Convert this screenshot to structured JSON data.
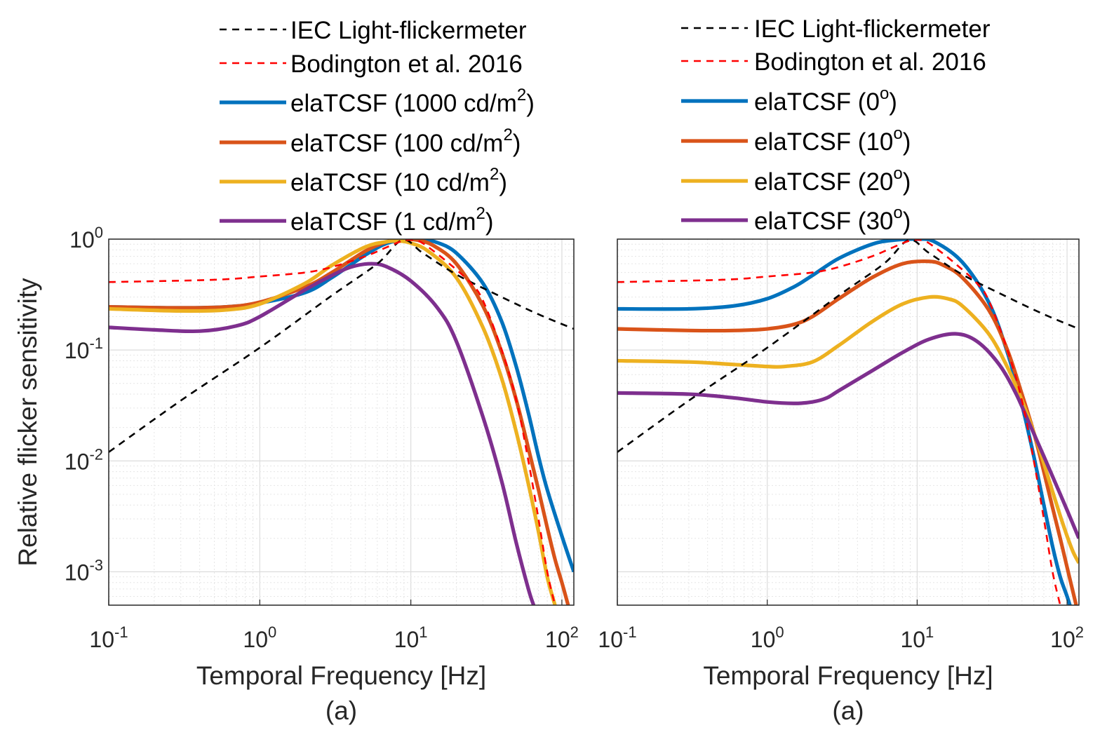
{
  "chart_data": [
    {
      "type": "line",
      "panel_label": "(a)",
      "xlabel": "Temporal Frequency [Hz]",
      "ylabel": "Relative flicker sensitivity",
      "xscale": "log",
      "yscale": "log",
      "xlim": [
        0.1,
        120
      ],
      "ylim": [
        0.0005,
        1
      ],
      "grid": true,
      "legend_position": "above-plot",
      "xticks": [
        {
          "base": "10",
          "exp": "-1"
        },
        {
          "base": "10",
          "exp": "0"
        },
        {
          "base": "10",
          "exp": "1"
        },
        {
          "base": "10",
          "exp": "2"
        }
      ],
      "yticks": [
        {
          "base": "10",
          "exp": "0"
        },
        {
          "base": "10",
          "exp": "-1"
        },
        {
          "base": "10",
          "exp": "-2"
        },
        {
          "base": "10",
          "exp": "-3"
        }
      ],
      "series": [
        {
          "name": "IEC Light-flickermeter",
          "legend_main": "IEC Light-flickermeter",
          "legend_sup": "",
          "legend_tail": "",
          "color": "#000000",
          "dash": true,
          "x": [
            0.1,
            0.3,
            1,
            3,
            6,
            8.8,
            12,
            20,
            40,
            70,
            120
          ],
          "y": [
            0.012,
            0.035,
            0.105,
            0.31,
            0.6,
            0.98,
            0.75,
            0.48,
            0.3,
            0.21,
            0.155
          ]
        },
        {
          "name": "Bodington et al. 2016",
          "legend_main": "Bodington et al. 2016",
          "legend_sup": "",
          "legend_tail": "",
          "color": "#ff0000",
          "dash": true,
          "x": [
            0.1,
            0.5,
            1,
            2,
            3,
            5,
            7,
            9,
            11,
            13,
            18,
            25,
            30,
            40,
            50,
            60,
            70,
            80,
            90
          ],
          "y": [
            0.41,
            0.43,
            0.46,
            0.5,
            0.56,
            0.7,
            0.85,
            0.97,
            0.97,
            0.85,
            0.6,
            0.4,
            0.28,
            0.1,
            0.035,
            0.01,
            0.003,
            0.001,
            0.0005
          ]
        },
        {
          "name": "elaTCSF (1000 cd/m2)",
          "legend_main": "elaTCSF (1000 cd/m",
          "legend_sup": "2",
          "legend_tail": ")",
          "color": "#0072bd",
          "dash": false,
          "x": [
            0.1,
            0.3,
            0.6,
            1,
            2,
            3,
            5,
            7,
            10,
            12,
            15,
            20,
            30,
            40,
            50,
            60,
            70,
            80,
            100,
            120
          ],
          "y": [
            0.245,
            0.24,
            0.245,
            0.265,
            0.33,
            0.45,
            0.72,
            0.92,
            1.0,
            0.99,
            0.93,
            0.75,
            0.4,
            0.18,
            0.07,
            0.027,
            0.011,
            0.0055,
            0.0021,
            0.001
          ]
        },
        {
          "name": "elaTCSF (100 cd/m2)",
          "legend_main": "elaTCSF (100 cd/m",
          "legend_sup": "2",
          "legend_tail": ")",
          "color": "#d95319",
          "dash": false,
          "x": [
            0.1,
            0.3,
            0.6,
            1,
            2,
            3,
            5,
            7,
            9,
            11,
            14,
            20,
            30,
            40,
            50,
            60,
            70,
            80,
            90,
            100,
            110
          ],
          "y": [
            0.245,
            0.24,
            0.245,
            0.27,
            0.37,
            0.5,
            0.78,
            0.95,
            1.0,
            0.98,
            0.88,
            0.6,
            0.25,
            0.095,
            0.035,
            0.013,
            0.0055,
            0.0025,
            0.0013,
            0.0008,
            0.0005
          ]
        },
        {
          "name": "elaTCSF (10 cd/m2)",
          "legend_main": "elaTCSF (10 cd/m",
          "legend_sup": "2",
          "legend_tail": ")",
          "color": "#edb120",
          "dash": false,
          "x": [
            0.1,
            0.3,
            0.6,
            1,
            2,
            3,
            5,
            7,
            8.5,
            10,
            13,
            20,
            30,
            40,
            50,
            60,
            70,
            80,
            90
          ],
          "y": [
            0.235,
            0.225,
            0.23,
            0.26,
            0.4,
            0.58,
            0.85,
            0.95,
            0.96,
            0.92,
            0.78,
            0.45,
            0.16,
            0.055,
            0.018,
            0.0062,
            0.0023,
            0.0009,
            0.0005
          ]
        },
        {
          "name": "elaTCSF (1 cd/m2)",
          "legend_main": "elaTCSF (1 cd/m",
          "legend_sup": "2",
          "legend_tail": ")",
          "color": "#7e2f8e",
          "dash": false,
          "x": [
            0.1,
            0.2,
            0.4,
            0.7,
            1,
            2,
            3,
            4,
            5.5,
            7,
            10,
            15,
            20,
            30,
            40,
            50,
            60,
            65
          ],
          "y": [
            0.16,
            0.152,
            0.148,
            0.165,
            0.2,
            0.35,
            0.47,
            0.56,
            0.6,
            0.56,
            0.42,
            0.24,
            0.12,
            0.025,
            0.0065,
            0.0018,
            0.0007,
            0.0005
          ]
        }
      ]
    },
    {
      "type": "line",
      "panel_label": "(a)",
      "xlabel": "Temporal Frequency [Hz]",
      "ylabel": "",
      "xscale": "log",
      "yscale": "log",
      "xlim": [
        0.1,
        120
      ],
      "ylim": [
        0.0005,
        1
      ],
      "grid": true,
      "legend_position": "above-plot",
      "xticks": [
        {
          "base": "10",
          "exp": "-1"
        },
        {
          "base": "10",
          "exp": "0"
        },
        {
          "base": "10",
          "exp": "1"
        },
        {
          "base": "10",
          "exp": "2"
        }
      ],
      "yticks": [],
      "series": [
        {
          "name": "IEC Light-flickermeter",
          "legend_main": "IEC Light-flickermeter",
          "legend_sup": "",
          "legend_tail": "",
          "color": "#000000",
          "dash": true,
          "x": [
            0.1,
            0.3,
            1,
            3,
            6,
            8.8,
            12,
            20,
            40,
            70,
            120
          ],
          "y": [
            0.012,
            0.035,
            0.105,
            0.31,
            0.6,
            0.98,
            0.75,
            0.48,
            0.3,
            0.21,
            0.155
          ]
        },
        {
          "name": "Bodington et al. 2016",
          "legend_main": "Bodington et al. 2016",
          "legend_sup": "",
          "legend_tail": "",
          "color": "#ff0000",
          "dash": true,
          "x": [
            0.1,
            0.5,
            1,
            2,
            3,
            5,
            7,
            9,
            11,
            13,
            18,
            25,
            30,
            40,
            50,
            60,
            70,
            80,
            90
          ],
          "y": [
            0.41,
            0.43,
            0.46,
            0.5,
            0.56,
            0.7,
            0.85,
            0.97,
            0.97,
            0.85,
            0.6,
            0.4,
            0.28,
            0.1,
            0.035,
            0.01,
            0.003,
            0.001,
            0.0005
          ]
        },
        {
          "name": "elaTCSF (0o)",
          "legend_main": "elaTCSF (0",
          "legend_sup": "o",
          "legend_tail": ")",
          "color": "#0072bd",
          "dash": false,
          "x": [
            0.1,
            0.3,
            0.6,
            1,
            1.5,
            2,
            3,
            5,
            7,
            10,
            13,
            20,
            30,
            40,
            50,
            60,
            70,
            80,
            90,
            100,
            110
          ],
          "y": [
            0.235,
            0.235,
            0.25,
            0.29,
            0.37,
            0.47,
            0.67,
            0.9,
            0.98,
            1.0,
            0.95,
            0.62,
            0.27,
            0.095,
            0.032,
            0.011,
            0.004,
            0.0017,
            0.0009,
            0.0006,
            0.0004
          ]
        },
        {
          "name": "elaTCSF (10o)",
          "legend_main": "elaTCSF (10",
          "legend_sup": "o",
          "legend_tail": ")",
          "color": "#d95319",
          "dash": false,
          "x": [
            0.1,
            0.3,
            0.6,
            1,
            1.5,
            2,
            3,
            5,
            8,
            12,
            15,
            20,
            30,
            40,
            50,
            60,
            70,
            80,
            90,
            100,
            115
          ],
          "y": [
            0.155,
            0.15,
            0.15,
            0.155,
            0.17,
            0.2,
            0.29,
            0.45,
            0.6,
            0.63,
            0.58,
            0.45,
            0.23,
            0.1,
            0.04,
            0.018,
            0.008,
            0.0038,
            0.002,
            0.0011,
            0.0005
          ]
        },
        {
          "name": "elaTCSF (20o)",
          "legend_main": "elaTCSF (20",
          "legend_sup": "o",
          "legend_tail": ")",
          "color": "#edb120",
          "dash": false,
          "x": [
            0.1,
            0.3,
            0.6,
            1,
            1.3,
            2,
            3,
            5,
            8,
            12,
            16,
            20,
            30,
            40,
            50,
            60,
            70,
            80,
            90,
            100,
            110,
            120
          ],
          "y": [
            0.08,
            0.078,
            0.074,
            0.071,
            0.071,
            0.078,
            0.11,
            0.18,
            0.26,
            0.3,
            0.29,
            0.25,
            0.14,
            0.07,
            0.035,
            0.018,
            0.0095,
            0.0053,
            0.0032,
            0.0021,
            0.0015,
            0.0012
          ]
        },
        {
          "name": "elaTCSF (30o)",
          "legend_main": "elaTCSF (30",
          "legend_sup": "o",
          "legend_tail": ")",
          "color": "#7e2f8e",
          "dash": false,
          "x": [
            0.1,
            0.3,
            0.6,
            1,
            1.5,
            2,
            2.5,
            3,
            5,
            8,
            12,
            18,
            25,
            35,
            45,
            55,
            70,
            85,
            100,
            120
          ],
          "y": [
            0.041,
            0.04,
            0.037,
            0.034,
            0.033,
            0.034,
            0.037,
            0.043,
            0.065,
            0.095,
            0.125,
            0.14,
            0.12,
            0.075,
            0.042,
            0.023,
            0.011,
            0.006,
            0.0036,
            0.002
          ]
        }
      ]
    }
  ]
}
